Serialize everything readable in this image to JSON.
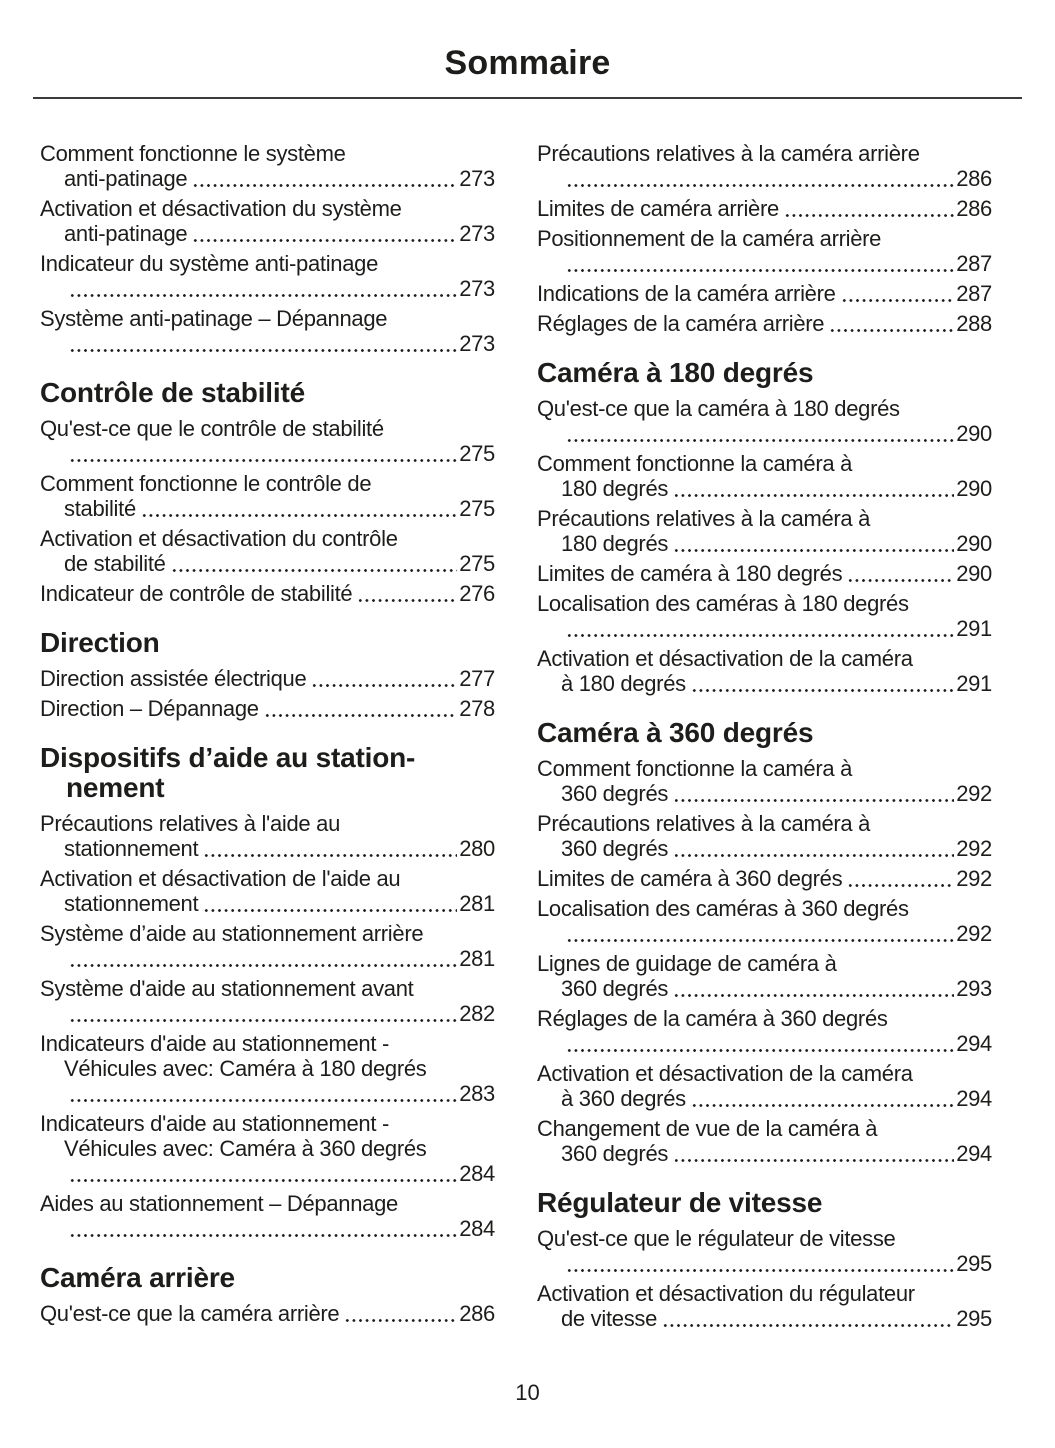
{
  "page": {
    "title": "Sommaire",
    "footer_page_number": "10"
  },
  "colors": {
    "text": "#1d1d1b",
    "rule": "#3b3b3b",
    "background": "#ffffff"
  },
  "toc": {
    "columns": [
      {
        "sections": [
          {
            "entries": [
              {
                "lines": [
                  "Comment fonctionne le système",
                  "anti-patinage"
                ],
                "page": "273"
              },
              {
                "lines": [
                  "Activation et désactivation du système",
                  "anti-patinage"
                ],
                "page": "273"
              },
              {
                "lines": [
                  "Indicateur du système anti-patinage",
                  ""
                ],
                "page": "273"
              },
              {
                "lines": [
                  "Système anti-patinage – Dépannage",
                  ""
                ],
                "page": "273"
              }
            ]
          },
          {
            "heading_lines": [
              "Contrôle de stabilité"
            ],
            "entries": [
              {
                "lines": [
                  "Qu'est-ce que le contrôle de stabilité",
                  ""
                ],
                "page": "275"
              },
              {
                "lines": [
                  "Comment fonctionne le contrôle de",
                  "stabilité"
                ],
                "page": "275"
              },
              {
                "lines": [
                  "Activation et désactivation du contrôle",
                  "de stabilité"
                ],
                "page": "275"
              },
              {
                "lines": [
                  "Indicateur de contrôle de stabilité"
                ],
                "page": "276"
              }
            ]
          },
          {
            "heading_lines": [
              "Direction"
            ],
            "entries": [
              {
                "lines": [
                  "Direction assistée électrique"
                ],
                "page": "277"
              },
              {
                "lines": [
                  "Direction – Dépannage"
                ],
                "page": "278"
              }
            ]
          },
          {
            "heading_lines": [
              "Dispositifs d’aide au station-",
              "nement"
            ],
            "entries": [
              {
                "lines": [
                  "Précautions relatives à l'aide au",
                  "stationnement"
                ],
                "page": "280"
              },
              {
                "lines": [
                  "Activation et désactivation de l'aide au",
                  "stationnement"
                ],
                "page": "281"
              },
              {
                "lines": [
                  "Système d’aide au stationnement arrière",
                  ""
                ],
                "page": "281"
              },
              {
                "lines": [
                  "Système d'aide au stationnement avant",
                  ""
                ],
                "page": "282"
              },
              {
                "lines": [
                  "Indicateurs d'aide au stationnement -",
                  "Véhicules avec: Caméra à 180 degrés",
                  ""
                ],
                "page": "283"
              },
              {
                "lines": [
                  "Indicateurs d'aide au stationnement -",
                  "Véhicules avec: Caméra à 360 degrés",
                  ""
                ],
                "page": "284"
              },
              {
                "lines": [
                  "Aides au stationnement – Dépannage",
                  ""
                ],
                "page": "284"
              }
            ]
          },
          {
            "heading_lines": [
              "Caméra arrière"
            ],
            "entries": [
              {
                "lines": [
                  "Qu'est-ce que la caméra arrière"
                ],
                "page": "286"
              }
            ]
          }
        ]
      },
      {
        "sections": [
          {
            "entries": [
              {
                "lines": [
                  "Précautions relatives à la caméra arrière",
                  ""
                ],
                "page": "286"
              },
              {
                "lines": [
                  "Limites de caméra arrière"
                ],
                "page": "286"
              },
              {
                "lines": [
                  "Positionnement de la caméra arrière",
                  ""
                ],
                "page": "287"
              },
              {
                "lines": [
                  "Indications de la caméra arrière"
                ],
                "page": "287"
              },
              {
                "lines": [
                  "Réglages de la caméra arrière"
                ],
                "page": "288"
              }
            ]
          },
          {
            "heading_lines": [
              "Caméra à 180 degrés"
            ],
            "entries": [
              {
                "lines": [
                  "Qu'est-ce que la caméra à 180 degrés",
                  ""
                ],
                "page": "290"
              },
              {
                "lines": [
                  "Comment fonctionne la caméra à",
                  "180 degrés"
                ],
                "page": "290"
              },
              {
                "lines": [
                  "Précautions relatives à la caméra à",
                  "180 degrés"
                ],
                "page": "290"
              },
              {
                "lines": [
                  "Limites de caméra à 180 degrés"
                ],
                "page": "290"
              },
              {
                "lines": [
                  "Localisation des caméras à 180 degrés",
                  ""
                ],
                "page": "291"
              },
              {
                "lines": [
                  "Activation et désactivation de la caméra",
                  "à 180 degrés"
                ],
                "page": "291"
              }
            ]
          },
          {
            "heading_lines": [
              "Caméra à 360 degrés"
            ],
            "entries": [
              {
                "lines": [
                  "Comment fonctionne la caméra à",
                  "360 degrés"
                ],
                "page": "292"
              },
              {
                "lines": [
                  "Précautions relatives à la caméra à",
                  "360 degrés"
                ],
                "page": "292"
              },
              {
                "lines": [
                  "Limites de caméra à 360 degrés"
                ],
                "page": "292"
              },
              {
                "lines": [
                  "Localisation des caméras à 360 degrés",
                  ""
                ],
                "page": "292"
              },
              {
                "lines": [
                  "Lignes de guidage de caméra à",
                  "360 degrés"
                ],
                "page": "293"
              },
              {
                "lines": [
                  "Réglages de la caméra à 360 degrés",
                  ""
                ],
                "page": "294"
              },
              {
                "lines": [
                  "Activation et désactivation de la caméra",
                  "à 360 degrés"
                ],
                "page": "294"
              },
              {
                "lines": [
                  "Changement de vue de la caméra à",
                  "360 degrés"
                ],
                "page": "294"
              }
            ]
          },
          {
            "heading_lines": [
              "Régulateur de vitesse"
            ],
            "entries": [
              {
                "lines": [
                  "Qu'est-ce que le régulateur de vitesse",
                  ""
                ],
                "page": "295"
              },
              {
                "lines": [
                  "Activation et désactivation du régulateur",
                  "de vitesse"
                ],
                "page": "295"
              }
            ]
          }
        ]
      }
    ]
  }
}
